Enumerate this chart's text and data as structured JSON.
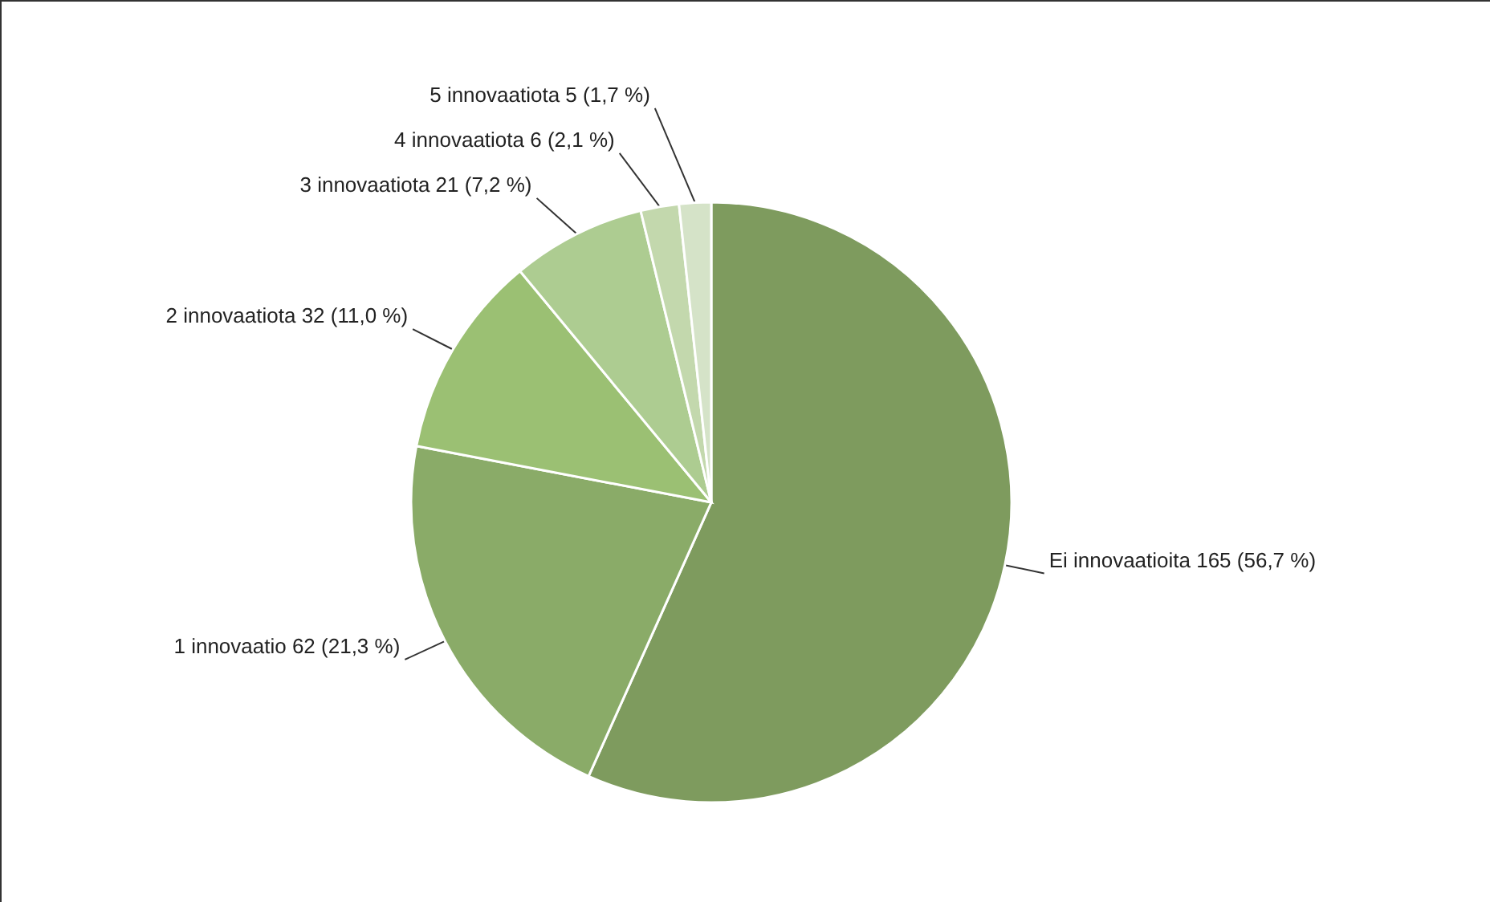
{
  "chart_data": {
    "type": "pie",
    "categories": [
      "Ei innovaatioita 165 (56,7 %)",
      "1 innovaatio 62 (21,3 %)",
      "2 innovaatiota 32 (11,0 %)",
      "3 innovaatiota 21 (7,2 %)",
      "4 innovaatiota 6 (2,1 %)",
      "5 innovaatiota 5 (1,7 %)"
    ],
    "values": [
      165,
      62,
      32,
      21,
      6,
      5
    ],
    "colors": [
      "#7e9b5e",
      "#8aab68",
      "#9bc073",
      "#adcc91",
      "#c3d8ad",
      "#d5e3c8"
    ]
  }
}
